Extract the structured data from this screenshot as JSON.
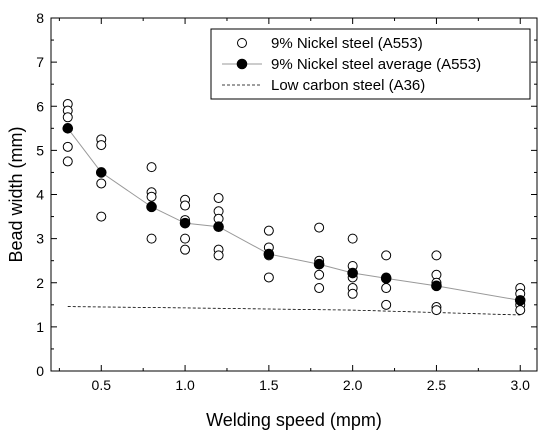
{
  "chart_data": {
    "type": "scatter",
    "xlabel": "Welding speed (mpm)",
    "ylabel": "Bead width (mm)",
    "xlim": [
      0.2,
      3.1
    ],
    "ylim": [
      0,
      8
    ],
    "x_ticks": [
      0.5,
      1.0,
      1.5,
      2.0,
      2.5,
      3.0
    ],
    "x_tick_labels": [
      "0.5",
      "1.0",
      "1.5",
      "2.0",
      "2.5",
      "3.0"
    ],
    "y_ticks": [
      0,
      1,
      2,
      3,
      4,
      5,
      6,
      7,
      8
    ],
    "y_tick_labels": [
      "0",
      "1",
      "2",
      "3",
      "4",
      "5",
      "6",
      "7",
      "8"
    ],
    "legend": {
      "position": "top-right"
    },
    "series": [
      {
        "name": "9% Nickel steel (A553)",
        "style": "open-circle",
        "points": [
          [
            0.3,
            6.05
          ],
          [
            0.3,
            5.9
          ],
          [
            0.3,
            5.75
          ],
          [
            0.3,
            5.08
          ],
          [
            0.3,
            4.75
          ],
          [
            0.5,
            5.25
          ],
          [
            0.5,
            5.12
          ],
          [
            0.5,
            4.25
          ],
          [
            0.5,
            3.5
          ],
          [
            0.8,
            4.62
          ],
          [
            0.8,
            4.05
          ],
          [
            0.8,
            3.95
          ],
          [
            0.8,
            3.0
          ],
          [
            1.0,
            3.88
          ],
          [
            1.0,
            3.75
          ],
          [
            1.0,
            3.42
          ],
          [
            1.0,
            3.0
          ],
          [
            1.0,
            2.75
          ],
          [
            1.2,
            3.92
          ],
          [
            1.2,
            3.62
          ],
          [
            1.2,
            3.45
          ],
          [
            1.2,
            2.75
          ],
          [
            1.2,
            2.62
          ],
          [
            1.5,
            3.18
          ],
          [
            1.5,
            2.8
          ],
          [
            1.5,
            2.62
          ],
          [
            1.5,
            2.12
          ],
          [
            1.8,
            3.25
          ],
          [
            1.8,
            2.5
          ],
          [
            1.8,
            2.18
          ],
          [
            1.8,
            1.88
          ],
          [
            2.0,
            3.0
          ],
          [
            2.0,
            2.38
          ],
          [
            2.0,
            2.12
          ],
          [
            2.0,
            1.88
          ],
          [
            2.0,
            1.75
          ],
          [
            2.2,
            2.62
          ],
          [
            2.2,
            2.12
          ],
          [
            2.2,
            1.88
          ],
          [
            2.2,
            1.5
          ],
          [
            2.5,
            2.62
          ],
          [
            2.5,
            2.18
          ],
          [
            2.5,
            2.0
          ],
          [
            2.5,
            1.45
          ],
          [
            2.5,
            1.38
          ],
          [
            3.0,
            1.88
          ],
          [
            3.0,
            1.75
          ],
          [
            3.0,
            1.5
          ],
          [
            3.0,
            1.38
          ]
        ]
      },
      {
        "name": "9% Nickel steel average (A553)",
        "style": "filled-circle-line",
        "x": [
          0.3,
          0.5,
          0.8,
          1.0,
          1.2,
          1.5,
          1.8,
          2.0,
          2.2,
          2.5,
          3.0
        ],
        "y": [
          5.5,
          4.5,
          3.72,
          3.35,
          3.27,
          2.65,
          2.42,
          2.22,
          2.1,
          1.93,
          1.6
        ]
      },
      {
        "name": "Low carbon steel (A36)",
        "style": "dashed-line",
        "x": [
          0.3,
          1.0,
          2.0,
          3.0
        ],
        "y": [
          1.46,
          1.43,
          1.38,
          1.27
        ]
      }
    ]
  }
}
